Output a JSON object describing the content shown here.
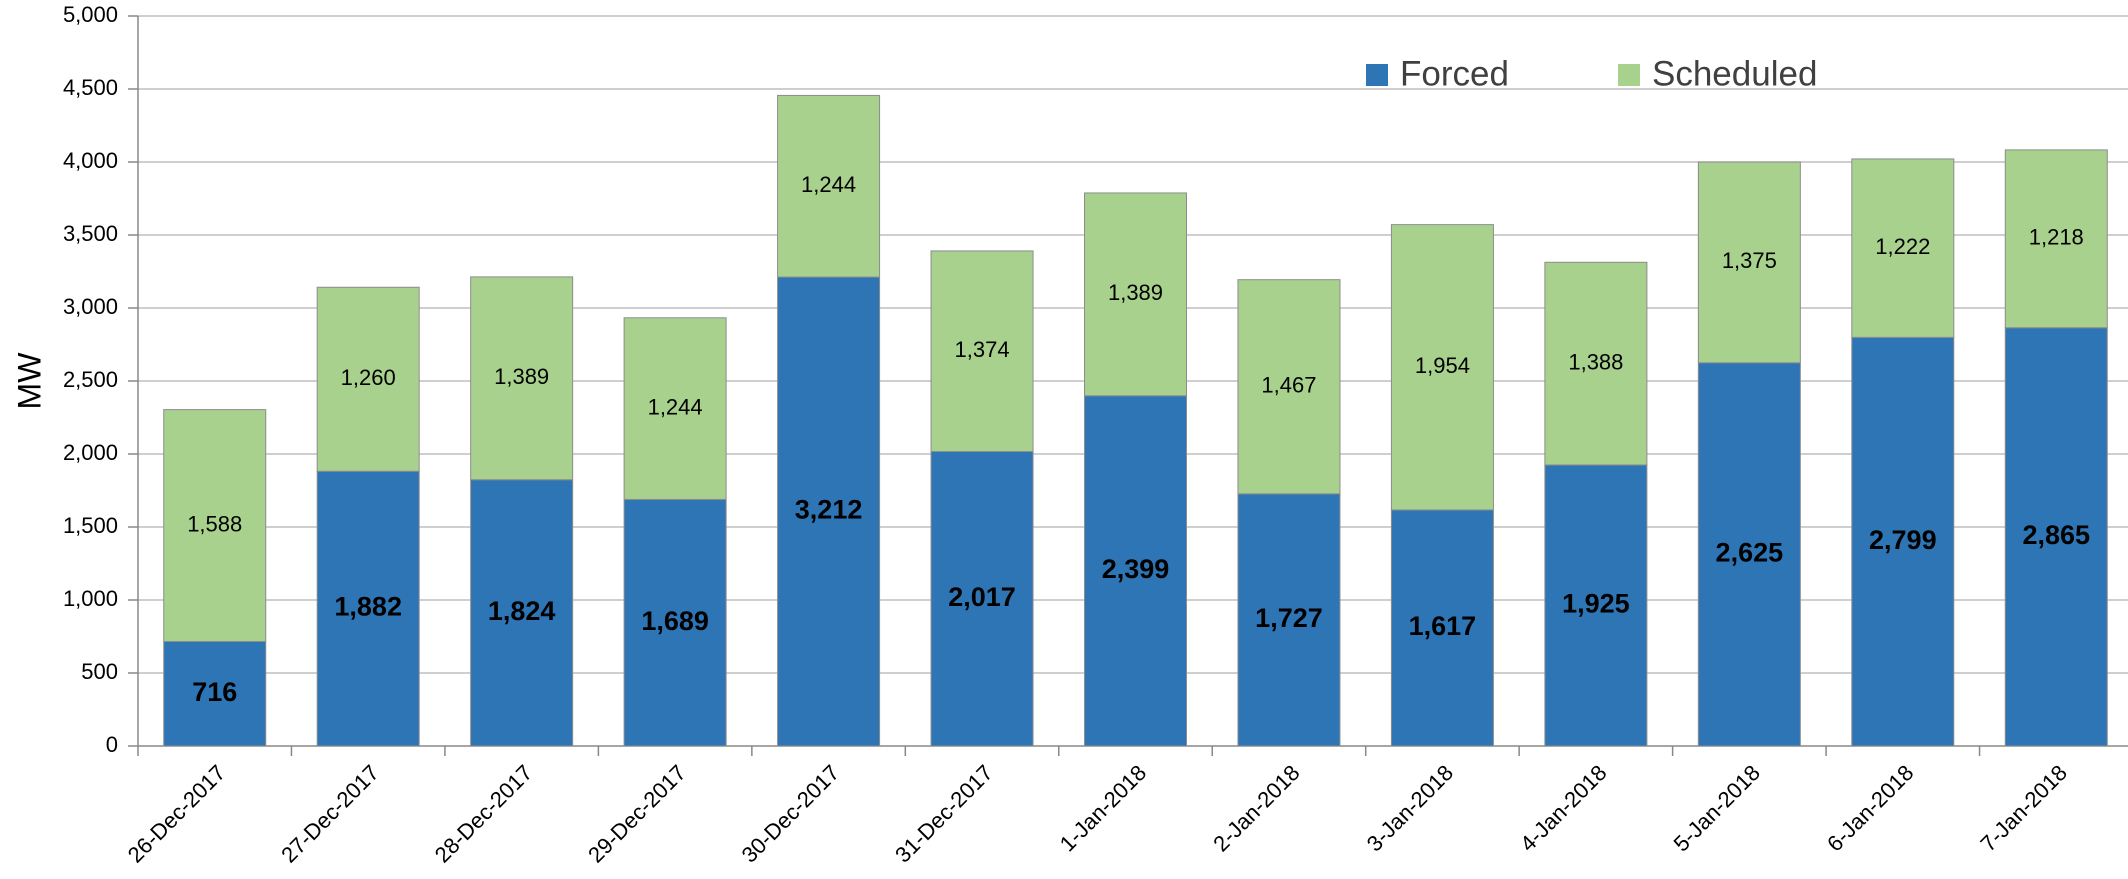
{
  "chart_data": {
    "type": "stacked_bar",
    "y_label": "MW",
    "categories": [
      "26-Dec-2017",
      "27-Dec-2017",
      "28-Dec-2017",
      "29-Dec-2017",
      "30-Dec-2017",
      "31-Dec-2017",
      "1-Jan-2018",
      "2-Jan-2018",
      "3-Jan-2018",
      "4-Jan-2018",
      "5-Jan-2018",
      "6-Jan-2018",
      "7-Jan-2018"
    ],
    "series": [
      {
        "name": "Forced",
        "color": "#2e75b6",
        "values": [
          716,
          1882,
          1824,
          1689,
          3212,
          2017,
          2399,
          1727,
          1617,
          1925,
          2625,
          2799,
          2865
        ],
        "value_labels": [
          "716",
          "1,882",
          "1,824",
          "1,689",
          "3,212",
          "2,017",
          "2,399",
          "1,727",
          "1,617",
          "1,925",
          "2,625",
          "2,799",
          "2,865"
        ]
      },
      {
        "name": "Scheduled",
        "color": "#a9d18e",
        "values": [
          1588,
          1260,
          1389,
          1244,
          1244,
          1374,
          1389,
          1467,
          1954,
          1388,
          1375,
          1222,
          1218
        ],
        "value_labels": [
          "1,588",
          "1,260",
          "1,389",
          "1,244",
          "1,244",
          "1,374",
          "1,389",
          "1,467",
          "1,954",
          "1,388",
          "1,375",
          "1,222",
          "1,218"
        ]
      }
    ],
    "ylim": [
      0,
      5000
    ],
    "yticks": [
      0,
      500,
      {
        "value": 1000,
        "label": "1,000"
      },
      {
        "value": 1500,
        "label": "1,500"
      },
      {
        "value": 2000,
        "label": "2,000"
      },
      {
        "value": 2500,
        "label": "2,500"
      },
      {
        "value": 3000,
        "label": "3,000"
      },
      {
        "value": 3500,
        "label": "3,500"
      },
      {
        "value": 4000,
        "label": "4,000"
      },
      {
        "value": 4500,
        "label": "4,500"
      },
      {
        "value": 5000,
        "label": "5,000"
      }
    ],
    "grid": true,
    "legend": "top-right"
  }
}
